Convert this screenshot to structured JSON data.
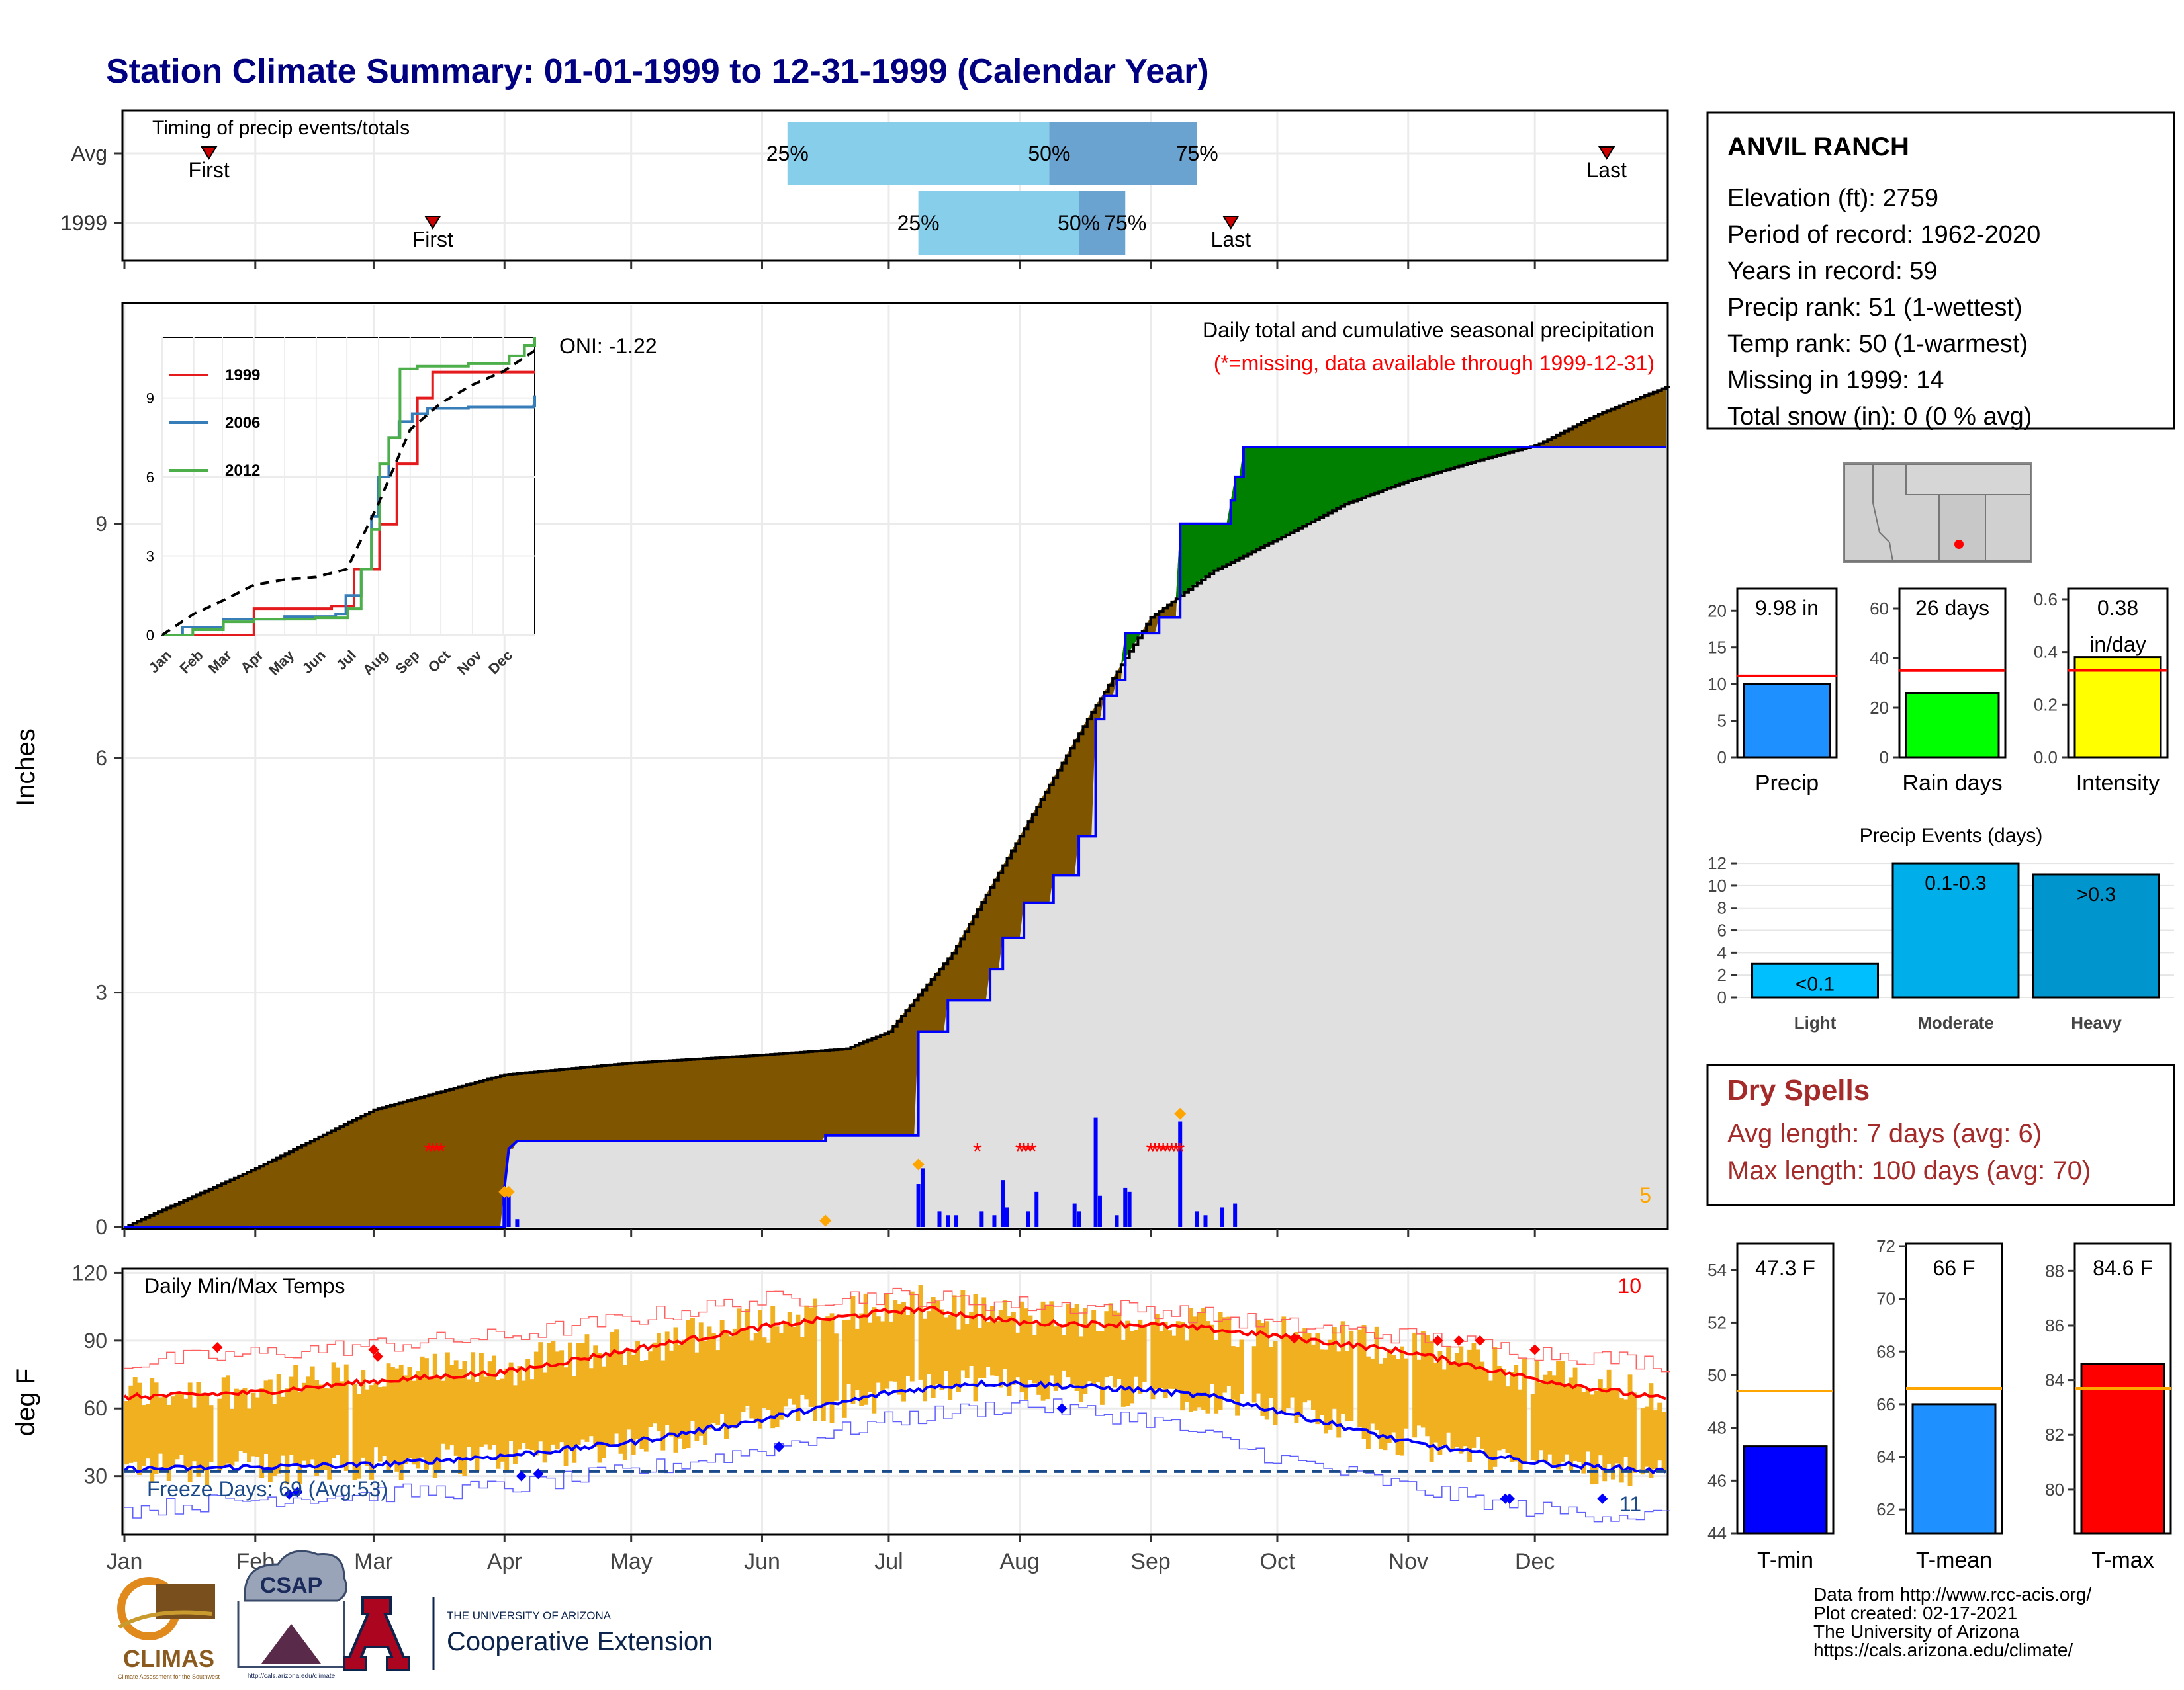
{
  "page": {
    "title": "Station Climate Summary: 01-01-1999 to 12-31-1999 (Calendar Year)",
    "footer": [
      "Data from http://www.rcc-acis.org/",
      "Plot created: 02-17-2021",
      "The University of Arizona",
      "https://cals.arizona.edu/climate/"
    ],
    "logos": {
      "climas": "CLIMAS",
      "climas_sub": "Climate Assessment for the Southwest",
      "csap": "CSAP",
      "csap_url": "http://cals.arizona.edu/climate",
      "ua_line1": "THE UNIVERSITY OF ARIZONA",
      "ua_line2": "Cooperative Extension",
      "ua_letter": "A"
    }
  },
  "station": {
    "name": "ANVIL RANCH",
    "lines": [
      "Elevation (ft): 2759",
      "Period of record: 1962-2020",
      "Years in record: 59",
      "Precip rank: 51 (1-wettest)",
      "Temp rank: 50 (1-warmest)",
      "Missing in 1999: 14",
      "Total snow (in): 0 (0 % avg)"
    ]
  },
  "dry_spells": {
    "title": "Dry Spells",
    "lines": [
      "Avg length: 7 days (avg: 6)",
      "Max length: 100 days (avg: 70)"
    ]
  },
  "colors": {
    "title": "#000080",
    "brown": "#7f5500",
    "green": "#008000",
    "gray_fill": "#e0e0e0",
    "blue": "#0000ff",
    "light_blue": "#87ceeb",
    "mid_blue": "#6aa3d0",
    "temp_bar": "#f0b020",
    "dry_red": "#a52a2a",
    "red": "#ff0000",
    "orange": "#ffa500"
  },
  "chart_data": [
    {
      "id": "timing",
      "type": "bar",
      "title": "Timing of precip events/totals",
      "rows": [
        {
          "label": "Avg",
          "first_day": 20,
          "last_day": 351,
          "q25_day": 157,
          "q50_day": 219,
          "q75_day": 254,
          "first_label": "First",
          "last_label": "Last",
          "q_labels": [
            "25%",
            "50%",
            "75%"
          ]
        },
        {
          "label": "1999",
          "first_day": 73,
          "last_day": 262,
          "q25_day": 188,
          "q50_day": 226,
          "q75_day": 237,
          "first_label": "First",
          "last_label": "Last",
          "q_labels": [
            "25%",
            "50%",
            "75%"
          ]
        }
      ]
    },
    {
      "id": "main",
      "type": "area",
      "title": "Daily total and cumulative seasonal precipitation",
      "subtitle": "(*=missing, data available through 1999-12-31)",
      "ylabel": "Inches",
      "ylim": [
        0,
        11.8
      ],
      "yticks": [
        0,
        3,
        6,
        9
      ],
      "xlim": [
        0,
        365
      ],
      "months": [
        "Jan",
        "Feb",
        "Mar",
        "Apr",
        "May",
        "Jun",
        "Jul",
        "Aug",
        "Sep",
        "Oct",
        "Nov",
        "Dec"
      ],
      "month_starts": [
        0,
        31,
        59,
        90,
        120,
        151,
        181,
        212,
        243,
        273,
        304,
        334
      ],
      "oni": "ONI: -1.22",
      "corner_value": "5",
      "avg_cumulative": [
        [
          0,
          0
        ],
        [
          31,
          0.75
        ],
        [
          59,
          1.5
        ],
        [
          90,
          1.95
        ],
        [
          120,
          2.1
        ],
        [
          151,
          2.2
        ],
        [
          171,
          2.28
        ],
        [
          181,
          2.5
        ],
        [
          196,
          3.5
        ],
        [
          212,
          5.0
        ],
        [
          228,
          6.5
        ],
        [
          243,
          7.8
        ],
        [
          258,
          8.4
        ],
        [
          273,
          8.8
        ],
        [
          289,
          9.25
        ],
        [
          304,
          9.55
        ],
        [
          320,
          9.8
        ],
        [
          334,
          10.0
        ],
        [
          349,
          10.4
        ],
        [
          365,
          10.75
        ]
      ],
      "obs_cumulative": [
        [
          0,
          0
        ],
        [
          90,
          0
        ],
        [
          90,
          0.5
        ],
        [
          91,
          1.0
        ],
        [
          93,
          1.1
        ],
        [
          166,
          1.1
        ],
        [
          166,
          1.17
        ],
        [
          188,
          1.17
        ],
        [
          188,
          2.5
        ],
        [
          195,
          2.5
        ],
        [
          195,
          2.9
        ],
        [
          205,
          2.9
        ],
        [
          205,
          3.3
        ],
        [
          208,
          3.3
        ],
        [
          208,
          3.7
        ],
        [
          213,
          3.7
        ],
        [
          213,
          4.15
        ],
        [
          220,
          4.15
        ],
        [
          220,
          4.5
        ],
        [
          226,
          4.5
        ],
        [
          226,
          5.0
        ],
        [
          230,
          5.0
        ],
        [
          230,
          6.5
        ],
        [
          232,
          6.5
        ],
        [
          232,
          6.8
        ],
        [
          235,
          6.8
        ],
        [
          235,
          7.0
        ],
        [
          237,
          7.0
        ],
        [
          237,
          7.6
        ],
        [
          245,
          7.6
        ],
        [
          245,
          7.8
        ],
        [
          250,
          7.8
        ],
        [
          250,
          9.0
        ],
        [
          262,
          9.0
        ],
        [
          262,
          9.3
        ],
        [
          263,
          9.3
        ],
        [
          263,
          9.6
        ],
        [
          265,
          9.6
        ],
        [
          265,
          9.98
        ],
        [
          365,
          9.98
        ]
      ],
      "daily_bars": [
        [
          90,
          0.45
        ],
        [
          91,
          0.5
        ],
        [
          93,
          0.1
        ],
        [
          188,
          0.55
        ],
        [
          189,
          0.75
        ],
        [
          193,
          0.2
        ],
        [
          195,
          0.15
        ],
        [
          197,
          0.15
        ],
        [
          203,
          0.2
        ],
        [
          206,
          0.15
        ],
        [
          208,
          0.6
        ],
        [
          209,
          0.25
        ],
        [
          214,
          0.2
        ],
        [
          216,
          0.45
        ],
        [
          225,
          0.3
        ],
        [
          226,
          0.2
        ],
        [
          230,
          1.4
        ],
        [
          231,
          0.4
        ],
        [
          235,
          0.15
        ],
        [
          237,
          0.5
        ],
        [
          238,
          0.45
        ],
        [
          250,
          1.35
        ],
        [
          254,
          0.2
        ],
        [
          256,
          0.15
        ],
        [
          260,
          0.25
        ],
        [
          263,
          0.3
        ]
      ],
      "missing_days": [
        72,
        73,
        74,
        75,
        202,
        212,
        213,
        214,
        215,
        243,
        244,
        245,
        246,
        247,
        248,
        249,
        250
      ],
      "orange_markers": [
        [
          90,
          0.45
        ],
        [
          91,
          0.45
        ],
        [
          166,
          0.08
        ],
        [
          188,
          0.8
        ],
        [
          250,
          1.45
        ]
      ],
      "inset": {
        "type": "line",
        "yticks": [
          0,
          3,
          6,
          9
        ],
        "ylim": [
          0,
          11.3
        ],
        "months": [
          "Jan",
          "Feb",
          "Mar",
          "Apr",
          "May",
          "Jun",
          "Jul",
          "Aug",
          "Sep",
          "Oct",
          "Nov",
          "Dec"
        ],
        "series": [
          {
            "name": "1999",
            "color": "#e41a1c",
            "values": [
              [
                0,
                0
              ],
              [
                90,
                0
              ],
              [
                90,
                1.0
              ],
              [
                166,
                1.1
              ],
              [
                188,
                2.5
              ],
              [
                213,
                4.2
              ],
              [
                230,
                6.5
              ],
              [
                250,
                9.0
              ],
              [
                265,
                9.98
              ],
              [
                365,
                9.98
              ]
            ]
          },
          {
            "name": "2006",
            "color": "#377eb8",
            "values": [
              [
                0,
                0
              ],
              [
                20,
                0.3
              ],
              [
                60,
                0.6
              ],
              [
                120,
                0.7
              ],
              [
                170,
                0.8
              ],
              [
                180,
                1.5
              ],
              [
                195,
                2.5
              ],
              [
                205,
                4.5
              ],
              [
                212,
                6.0
              ],
              [
                222,
                7.5
              ],
              [
                232,
                8.1
              ],
              [
                245,
                8.4
              ],
              [
                260,
                8.6
              ],
              [
                300,
                8.65
              ],
              [
                364,
                8.7
              ],
              [
                365,
                9.1
              ]
            ]
          },
          {
            "name": "2012",
            "color": "#4daf4a",
            "values": [
              [
                0,
                0
              ],
              [
                30,
                0.2
              ],
              [
                60,
                0.5
              ],
              [
                90,
                0.6
              ],
              [
                150,
                0.65
              ],
              [
                182,
                1.0
              ],
              [
                195,
                2.5
              ],
              [
                205,
                4.0
              ],
              [
                213,
                6.5
              ],
              [
                222,
                7.5
              ],
              [
                233,
                10.1
              ],
              [
                250,
                10.2
              ],
              [
                300,
                10.3
              ],
              [
                340,
                10.6
              ],
              [
                355,
                11.0
              ],
              [
                365,
                11.3
              ]
            ]
          },
          {
            "name": "avg",
            "color": "#000000",
            "dashed": true,
            "values": [
              [
                0,
                0
              ],
              [
                31,
                0.8
              ],
              [
                59,
                1.3
              ],
              [
                90,
                1.9
              ],
              [
                120,
                2.1
              ],
              [
                151,
                2.2
              ],
              [
                181,
                2.5
              ],
              [
                212,
                5.0
              ],
              [
                243,
                7.8
              ],
              [
                273,
                8.8
              ],
              [
                304,
                9.5
              ],
              [
                334,
                10.0
              ],
              [
                365,
                10.8
              ]
            ]
          }
        ]
      }
    },
    {
      "id": "temps",
      "type": "line",
      "title": "Daily Min/Max Temps",
      "ylabel": "deg F",
      "ylim": [
        5,
        121
      ],
      "yticks": [
        30,
        60,
        90,
        120
      ],
      "xlim": [
        0,
        365
      ],
      "months": [
        "Jan",
        "Feb",
        "Mar",
        "Apr",
        "May",
        "Jun",
        "Jul",
        "Aug",
        "Sep",
        "Oct",
        "Nov",
        "Dec"
      ],
      "freeze_label": "Freeze Days: 69 (Avg:53)",
      "freeze_line": 32,
      "top_right_value": "10",
      "bottom_right_value": "11",
      "avg_max": [
        [
          0,
          65
        ],
        [
          31,
          67
        ],
        [
          59,
          72
        ],
        [
          90,
          76
        ],
        [
          120,
          86
        ],
        [
          151,
          96
        ],
        [
          181,
          103
        ],
        [
          190,
          104
        ],
        [
          212,
          98
        ],
        [
          243,
          97
        ],
        [
          258,
          95
        ],
        [
          273,
          92
        ],
        [
          304,
          85
        ],
        [
          334,
          73
        ],
        [
          365,
          64
        ]
      ],
      "avg_min": [
        [
          0,
          33
        ],
        [
          31,
          34
        ],
        [
          59,
          35
        ],
        [
          90,
          39
        ],
        [
          120,
          45
        ],
        [
          151,
          55
        ],
        [
          181,
          67
        ],
        [
          200,
          71
        ],
        [
          212,
          71
        ],
        [
          243,
          68
        ],
        [
          258,
          65
        ],
        [
          273,
          59
        ],
        [
          304,
          45
        ],
        [
          334,
          36
        ],
        [
          365,
          32
        ]
      ],
      "rec_max": [
        [
          0,
          80
        ],
        [
          59,
          88
        ],
        [
          90,
          92
        ],
        [
          120,
          100
        ],
        [
          151,
          108
        ],
        [
          181,
          110
        ],
        [
          212,
          106
        ],
        [
          243,
          104
        ],
        [
          273,
          97
        ],
        [
          304,
          92
        ],
        [
          334,
          85
        ],
        [
          365,
          80
        ]
      ],
      "rec_min": [
        [
          0,
          15
        ],
        [
          31,
          20
        ],
        [
          59,
          22
        ],
        [
          90,
          25
        ],
        [
          120,
          32
        ],
        [
          151,
          42
        ],
        [
          181,
          55
        ],
        [
          212,
          62
        ],
        [
          243,
          55
        ],
        [
          273,
          38
        ],
        [
          304,
          25
        ],
        [
          334,
          15
        ],
        [
          365,
          12
        ]
      ],
      "red_markers": [
        [
          22,
          87
        ],
        [
          59,
          86
        ],
        [
          60,
          83
        ],
        [
          277,
          91
        ],
        [
          311,
          90
        ],
        [
          316,
          90
        ],
        [
          321,
          90
        ],
        [
          334,
          86
        ]
      ],
      "blue_markers": [
        [
          39,
          22
        ],
        [
          41,
          23
        ],
        [
          94,
          30
        ],
        [
          98,
          31
        ],
        [
          155,
          43
        ],
        [
          222,
          60
        ],
        [
          327,
          20
        ],
        [
          328,
          20
        ],
        [
          350,
          20
        ]
      ]
    },
    {
      "id": "precip_totals",
      "type": "bar",
      "categories": [
        "Precip",
        "Rain days",
        "Intensity"
      ],
      "values": [
        9.98,
        26,
        0.38
      ],
      "avg": [
        11.1,
        35,
        0.33
      ],
      "labels": [
        "9.98 in",
        "26 days",
        "0.38\nin/day"
      ],
      "ylims": [
        [
          0,
          23
        ],
        [
          0,
          68
        ],
        [
          0,
          0.64
        ]
      ],
      "yticks": [
        [
          0,
          5,
          10,
          15,
          20
        ],
        [
          0,
          20,
          40,
          60
        ],
        [
          0.0,
          0.2,
          0.4,
          0.6
        ]
      ],
      "tick_labels": [
        [
          "0",
          "5",
          "10",
          "15",
          "20"
        ],
        [
          "0",
          "20",
          "40",
          "60"
        ],
        [
          "0.0",
          "0.2",
          "0.4",
          "0.6"
        ]
      ],
      "colors": [
        "#1e90ff",
        "#00ff00",
        "#ffff00"
      ]
    },
    {
      "id": "events",
      "type": "bar",
      "title": "Precip Events (days)",
      "categories": [
        "Light",
        "Moderate",
        "Heavy"
      ],
      "values": [
        3,
        12,
        11
      ],
      "labels": [
        "<0.1",
        "0.1-0.3",
        ">0.3"
      ],
      "ylim": [
        0,
        12.3
      ],
      "yticks": [
        0,
        2,
        4,
        6,
        8,
        10,
        12
      ],
      "colors": [
        "#00bfff",
        "#00aeea",
        "#0095cc"
      ]
    },
    {
      "id": "temp_totals",
      "type": "bar",
      "categories": [
        "T-min",
        "T-mean",
        "T-max"
      ],
      "values": [
        47.3,
        66,
        84.6
      ],
      "avg": [
        49.4,
        66.6,
        83.7
      ],
      "labels": [
        "47.3 F",
        "66 F",
        "84.6 F"
      ],
      "ylims": [
        [
          44,
          55
        ],
        [
          61.1,
          72.1
        ],
        [
          78.4,
          89
        ]
      ],
      "yticks": [
        [
          44,
          46,
          48,
          50,
          52,
          54
        ],
        [
          62,
          64,
          66,
          68,
          70,
          72
        ],
        [
          80,
          82,
          84,
          86,
          88
        ]
      ],
      "colors": [
        "#0000ff",
        "#1e90ff",
        "#ff0000"
      ]
    }
  ]
}
